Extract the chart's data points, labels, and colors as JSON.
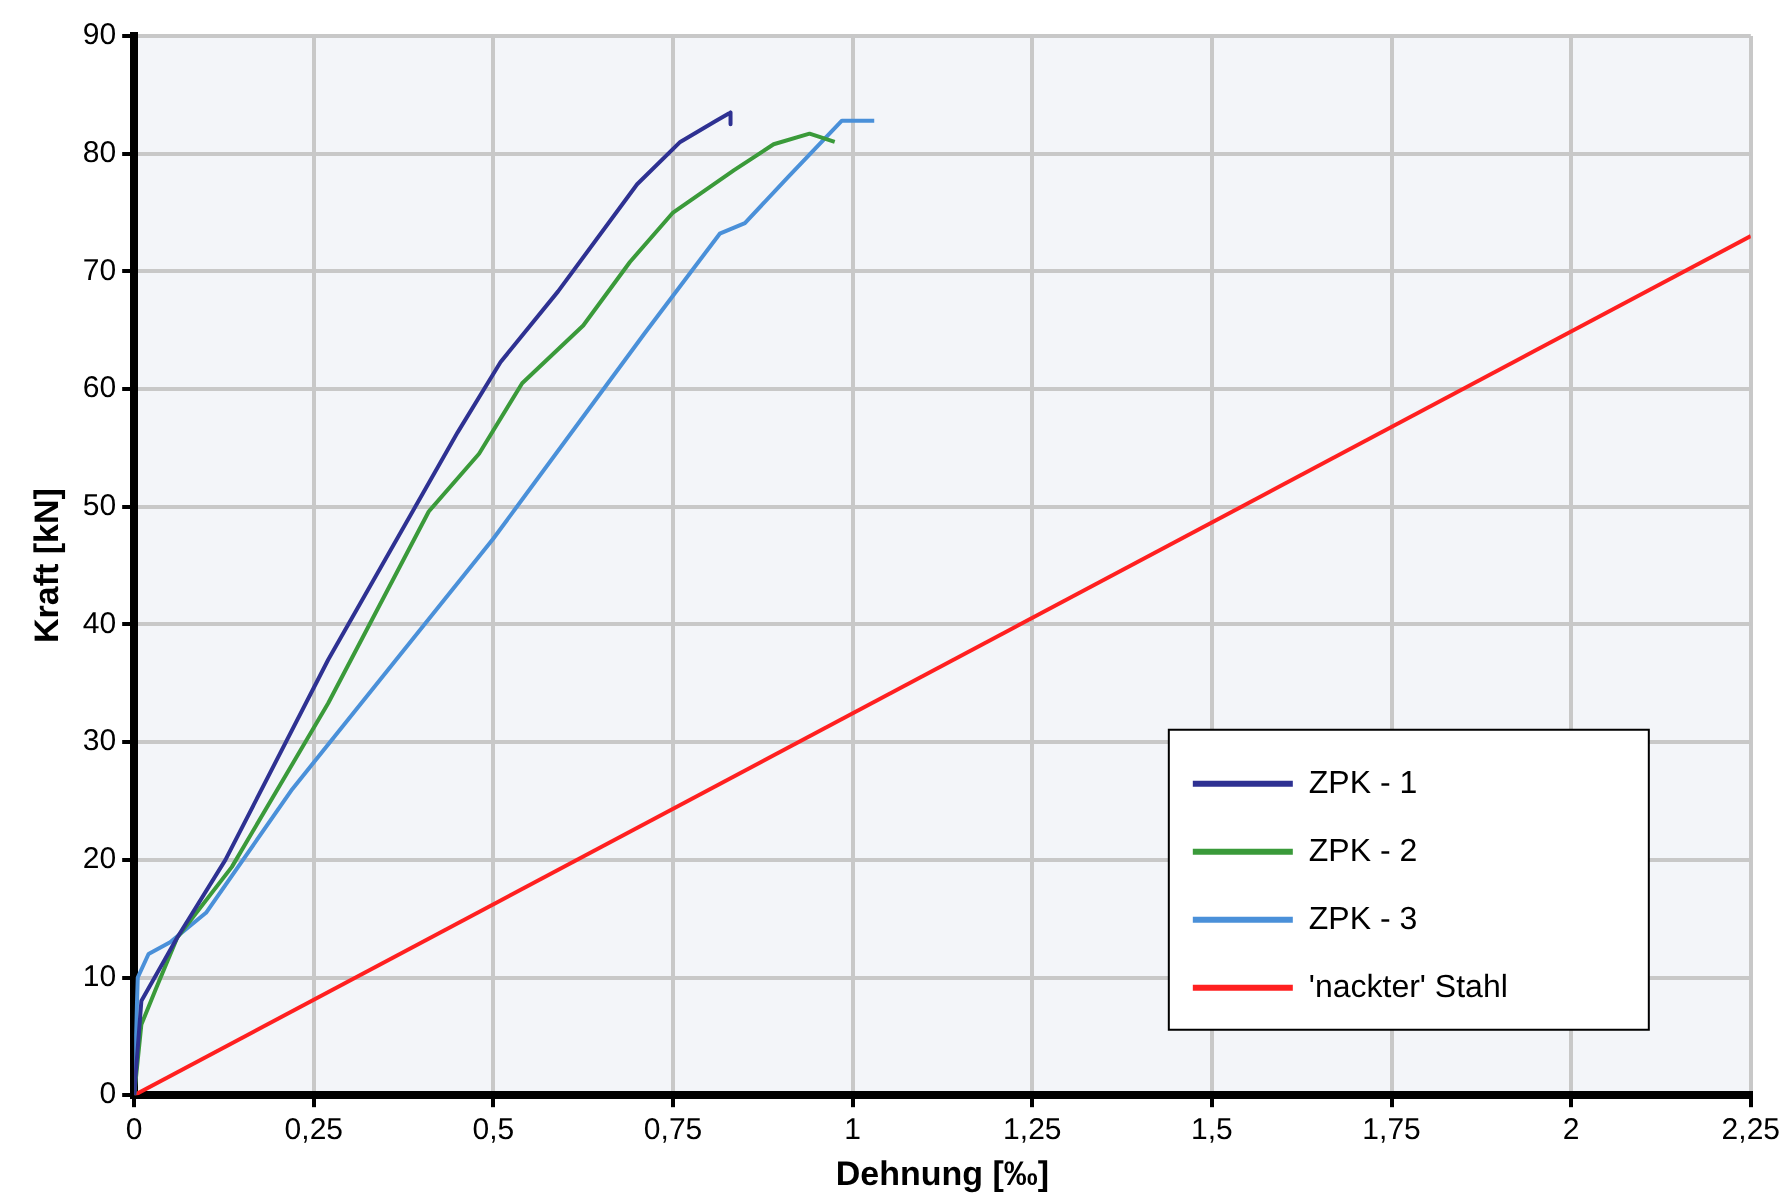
{
  "chart_data": {
    "type": "line",
    "xlabel": "Dehnung [‰]",
    "ylabel": "Kraft [kN]",
    "xlim": [
      0,
      2.25
    ],
    "ylim": [
      0,
      90
    ],
    "xticks": [
      0,
      {
        "value": 0.25,
        "label": "0,25"
      },
      {
        "value": 0.5,
        "label": "0,5"
      },
      {
        "value": 0.75,
        "label": "0,75"
      },
      1,
      {
        "value": 1.25,
        "label": "1,25"
      },
      {
        "value": 1.5,
        "label": "1,5"
      },
      {
        "value": 1.75,
        "label": "1,75"
      },
      2,
      {
        "value": 2.25,
        "label": "2,25"
      }
    ],
    "yticks": [
      0,
      10,
      20,
      30,
      40,
      50,
      60,
      70,
      80,
      90
    ],
    "grid": true,
    "legend": "bottom right",
    "marker": "none",
    "line_style": "solid",
    "series": [
      {
        "name": "ZPK - 1",
        "color": "#2e3192",
        "x": [
          0,
          0.01,
          0.06,
          0.127,
          0.27,
          0.45,
          0.51,
          0.59,
          0.7,
          0.76,
          0.81,
          0.83,
          0.83
        ],
        "values": [
          0,
          8,
          13.4,
          20,
          37,
          56.3,
          62.3,
          68.3,
          77.4,
          81,
          82.8,
          83.5,
          82.5
        ]
      },
      {
        "name": "ZPK - 2",
        "color": "#3a9a3a",
        "x": [
          0,
          0.01,
          0.03,
          0.06,
          0.136,
          0.27,
          0.41,
          0.48,
          0.54,
          0.625,
          0.69,
          0.75,
          0.835,
          0.89,
          0.94,
          0.975
        ],
        "values": [
          0,
          6,
          9,
          13.4,
          19.4,
          33.3,
          49.6,
          54.5,
          60.5,
          65.4,
          70.8,
          75,
          78.6,
          80.8,
          81.7,
          81
        ]
      },
      {
        "name": "ZPK - 3",
        "color": "#4a90d9",
        "x": [
          0,
          0.005,
          0.02,
          0.05,
          0.1,
          0.22,
          0.5,
          0.71,
          0.815,
          0.85,
          0.91,
          0.985,
          1.03
        ],
        "values": [
          0,
          10,
          12,
          13,
          15.5,
          26,
          47.3,
          64.7,
          73.2,
          74.1,
          78,
          82.8,
          82.8
        ]
      },
      {
        "name": "'nackter' Stahl",
        "color": "#ff2020",
        "x": [
          0,
          2.25
        ],
        "values": [
          0,
          73
        ]
      }
    ]
  }
}
